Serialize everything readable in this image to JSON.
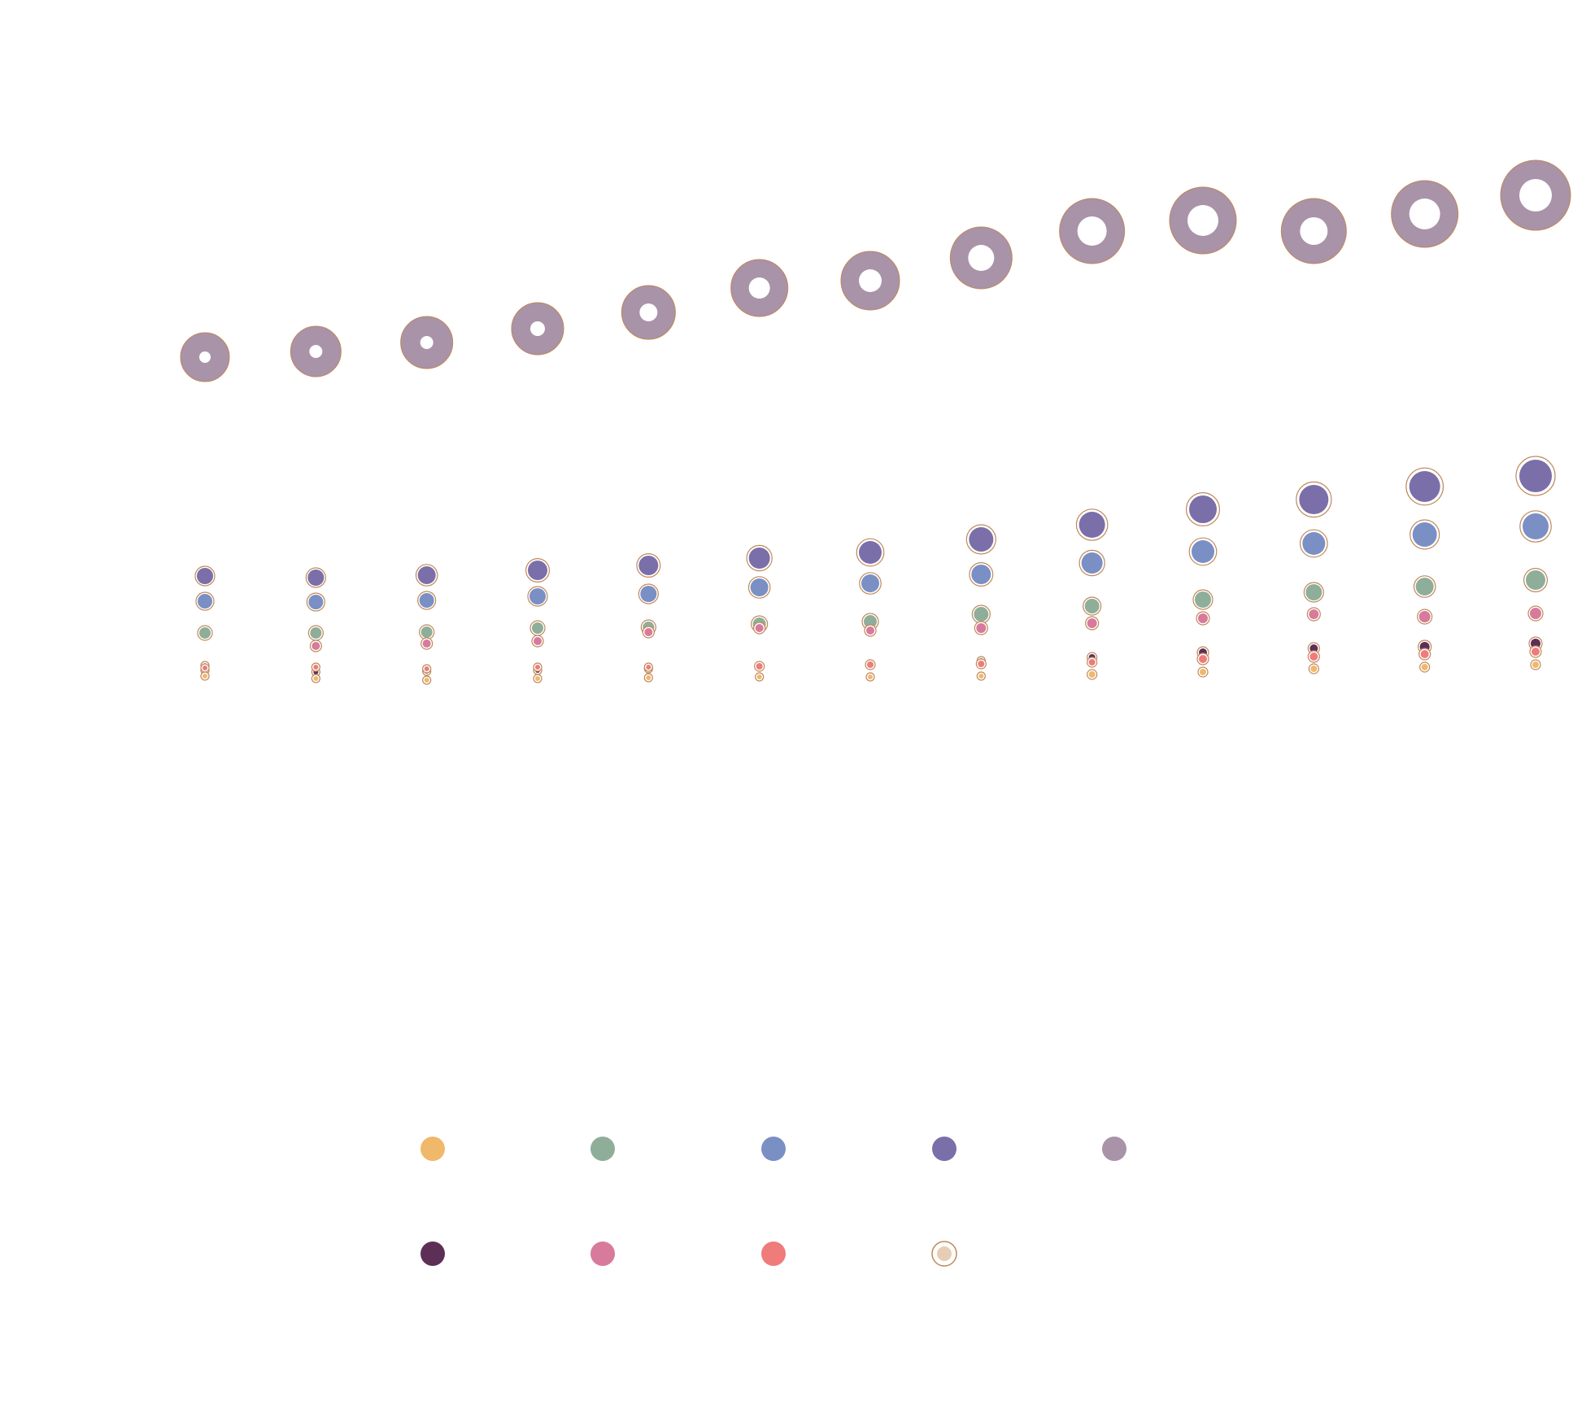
{
  "chart_data": {
    "type": "scatter",
    "title": "",
    "xlabel": "",
    "ylabel": "",
    "x": [
      1,
      2,
      3,
      4,
      5,
      6,
      7,
      8,
      9,
      10,
      11,
      12,
      13
    ],
    "y_axis_inverted": true,
    "grid": false,
    "legend_placement": "bottom",
    "marker_outline_color": "#c0885a",
    "series": [
      {
        "key": "purple",
        "color": "#7a6fa8",
        "y": [
          708,
          710,
          707,
          701,
          695,
          686,
          679,
          663,
          645,
          626,
          614,
          598,
          585
        ],
        "size": [
          10,
          10,
          11,
          12,
          12,
          13,
          14,
          15,
          16,
          17,
          18,
          19,
          20
        ]
      },
      {
        "key": "blue",
        "color": "#7a8fc4",
        "y": [
          739,
          740,
          738,
          733,
          730,
          722,
          717,
          706,
          692,
          678,
          668,
          657,
          647
        ],
        "size": [
          9,
          9,
          9,
          10,
          10,
          11,
          11,
          12,
          13,
          14,
          14,
          15,
          16
        ]
      },
      {
        "key": "green",
        "color": "#8fae9a",
        "y": [
          778,
          778,
          777,
          772,
          771,
          767,
          764,
          755,
          745,
          737,
          728,
          721,
          713
        ],
        "size": [
          7,
          7,
          7,
          7,
          7,
          8,
          8,
          9,
          9,
          10,
          10,
          11,
          12
        ]
      },
      {
        "key": "pink",
        "color": "#d87a9b",
        "y": [
          818,
          794,
          791,
          788,
          777,
          772,
          775,
          772,
          766,
          760,
          755,
          758,
          754
        ],
        "size": [
          3,
          5,
          5,
          5,
          5,
          5,
          5,
          6,
          6,
          6,
          6,
          7,
          7
        ]
      },
      {
        "key": "coral",
        "color": "#ef7b7b",
        "y": [
          821,
          820,
          822,
          820,
          820,
          819,
          817,
          816,
          814,
          810,
          807,
          804,
          801
        ],
        "size": [
          3,
          3,
          3,
          3,
          3,
          4,
          4,
          4,
          4,
          5,
          5,
          5,
          5
        ]
      },
      {
        "key": "plum",
        "color": "#5e2f56",
        "y": [
          824,
          826,
          825,
          824,
          822,
          820,
          816,
          812,
          808,
          802,
          797,
          795,
          791
        ],
        "size": [
          3,
          3,
          3,
          3,
          3,
          3,
          3,
          3,
          4,
          5,
          5,
          6,
          6
        ]
      },
      {
        "key": "orange",
        "color": "#f0b86a",
        "y": [
          831,
          834,
          836,
          834,
          833,
          832,
          832,
          831,
          829,
          826,
          822,
          820,
          817
        ],
        "size": [
          3,
          3,
          3,
          3,
          3,
          3,
          3,
          3,
          4,
          4,
          4,
          4,
          4
        ]
      },
      {
        "key": "mauve",
        "color": "#a893a8",
        "ring": true,
        "y": [
          439,
          432,
          421,
          404,
          384,
          354,
          345,
          317,
          284,
          271,
          284,
          263,
          240
        ],
        "size": [
          30,
          31,
          32,
          32,
          33,
          35,
          36,
          38,
          40,
          41,
          40,
          41,
          43
        ],
        "hole": [
          7,
          8,
          8,
          9,
          11,
          13,
          14,
          16,
          18,
          19,
          17,
          19,
          20
        ]
      }
    ],
    "legend": [
      {
        "color": "#f0b86a"
      },
      {
        "color": "#8fae9a"
      },
      {
        "color": "#7a8fc4"
      },
      {
        "color": "#7a6fa8"
      },
      {
        "color": "#a893a8"
      },
      {
        "color": "#5e2f56"
      },
      {
        "color": "#d87a9b"
      },
      {
        "color": "#ef7b7b"
      },
      {
        "color": "#e8cdb5",
        "outlined": true
      }
    ]
  }
}
